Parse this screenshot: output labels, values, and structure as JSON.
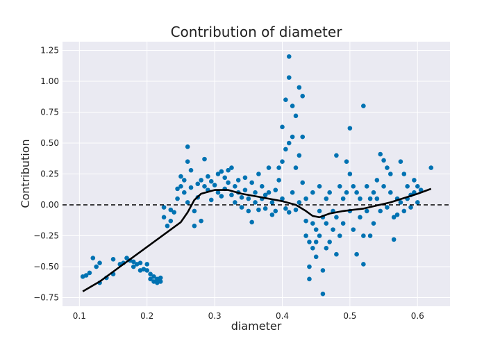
{
  "chart_data": {
    "type": "scatter",
    "title": "Contribution of diameter",
    "xlabel": "diameter",
    "ylabel": "Contribution",
    "xlim": [
      0.075,
      0.648
    ],
    "ylim": [
      -0.82,
      1.32
    ],
    "grid": true,
    "legend": "none",
    "x_ticks": [
      0.1,
      0.2,
      0.3,
      0.4,
      0.5,
      0.6
    ],
    "x_tick_labels": [
      "0.1",
      "0.2",
      "0.3",
      "0.4",
      "0.5",
      "0.6"
    ],
    "y_ticks": [
      -0.75,
      -0.5,
      -0.25,
      0.0,
      0.25,
      0.5,
      0.75,
      1.0,
      1.25
    ],
    "y_tick_labels": [
      "−0.75",
      "−0.50",
      "−0.25",
      "0.00",
      "0.25",
      "0.50",
      "0.75",
      "1.00",
      "1.25"
    ],
    "reference_line": {
      "y": 0,
      "style": "dashed",
      "color": "#000000"
    },
    "colors": {
      "points": "#0072b2",
      "trend": "#000000",
      "background": "#eaeaf2",
      "grid": "#ffffff"
    },
    "points": [
      [
        0.105,
        -0.58
      ],
      [
        0.11,
        -0.57
      ],
      [
        0.115,
        -0.55
      ],
      [
        0.12,
        -0.43
      ],
      [
        0.125,
        -0.5
      ],
      [
        0.13,
        -0.47
      ],
      [
        0.13,
        -0.63
      ],
      [
        0.14,
        -0.59
      ],
      [
        0.15,
        -0.44
      ],
      [
        0.15,
        -0.56
      ],
      [
        0.16,
        -0.48
      ],
      [
        0.165,
        -0.47
      ],
      [
        0.17,
        -0.43
      ],
      [
        0.175,
        -0.45
      ],
      [
        0.18,
        -0.46
      ],
      [
        0.18,
        -0.5
      ],
      [
        0.185,
        -0.48
      ],
      [
        0.19,
        -0.47
      ],
      [
        0.19,
        -0.53
      ],
      [
        0.195,
        -0.52
      ],
      [
        0.2,
        -0.48
      ],
      [
        0.2,
        -0.53
      ],
      [
        0.205,
        -0.56
      ],
      [
        0.205,
        -0.6
      ],
      [
        0.21,
        -0.58
      ],
      [
        0.21,
        -0.62
      ],
      [
        0.215,
        -0.6
      ],
      [
        0.215,
        -0.63
      ],
      [
        0.22,
        -0.59
      ],
      [
        0.22,
        -0.62
      ],
      [
        0.225,
        -0.02
      ],
      [
        0.225,
        -0.1
      ],
      [
        0.23,
        -0.17
      ],
      [
        0.235,
        -0.04
      ],
      [
        0.235,
        -0.13
      ],
      [
        0.24,
        -0.06
      ],
      [
        0.245,
        0.13
      ],
      [
        0.245,
        0.05
      ],
      [
        0.25,
        0.23
      ],
      [
        0.25,
        0.15
      ],
      [
        0.255,
        0.2
      ],
      [
        0.255,
        0.1
      ],
      [
        0.26,
        0.47
      ],
      [
        0.26,
        0.35
      ],
      [
        0.26,
        0.02
      ],
      [
        0.265,
        0.28
      ],
      [
        0.265,
        0.14
      ],
      [
        0.27,
        -0.05
      ],
      [
        0.27,
        -0.17
      ],
      [
        0.275,
        0.06
      ],
      [
        0.275,
        0.17
      ],
      [
        0.28,
        -0.13
      ],
      [
        0.28,
        0.2
      ],
      [
        0.285,
        0.37
      ],
      [
        0.285,
        0.15
      ],
      [
        0.29,
        0.12
      ],
      [
        0.29,
        0.23
      ],
      [
        0.295,
        0.04
      ],
      [
        0.295,
        0.19
      ],
      [
        0.3,
        0.16
      ],
      [
        0.305,
        0.25
      ],
      [
        0.305,
        0.1
      ],
      [
        0.31,
        0.27
      ],
      [
        0.31,
        0.07
      ],
      [
        0.315,
        0.22
      ],
      [
        0.315,
        0.13
      ],
      [
        0.32,
        0.28
      ],
      [
        0.32,
        0.18
      ],
      [
        0.325,
        0.3
      ],
      [
        0.325,
        0.08
      ],
      [
        0.33,
        0.15
      ],
      [
        0.33,
        0.02
      ],
      [
        0.335,
        0.2
      ],
      [
        0.335,
        0.1
      ],
      [
        0.34,
        0.06
      ],
      [
        0.34,
        -0.02
      ],
      [
        0.345,
        0.22
      ],
      [
        0.345,
        0.12
      ],
      [
        0.35,
        0.05
      ],
      [
        0.35,
        -0.05
      ],
      [
        0.355,
        0.18
      ],
      [
        0.355,
        -0.14
      ],
      [
        0.36,
        0.1
      ],
      [
        0.36,
        0.02
      ],
      [
        0.365,
        0.25
      ],
      [
        0.365,
        -0.04
      ],
      [
        0.37,
        0.15
      ],
      [
        0.37,
        0.05
      ],
      [
        0.375,
        -0.03
      ],
      [
        0.375,
        0.08
      ],
      [
        0.38,
        0.3
      ],
      [
        0.38,
        0.1
      ],
      [
        0.385,
        -0.08
      ],
      [
        0.385,
        0.02
      ],
      [
        0.39,
        0.12
      ],
      [
        0.39,
        -0.05
      ],
      [
        0.395,
        0.3
      ],
      [
        0.395,
        0.2
      ],
      [
        0.4,
        0.63
      ],
      [
        0.4,
        0.35
      ],
      [
        0.4,
        0.05
      ],
      [
        0.405,
        0.85
      ],
      [
        0.405,
        0.45
      ],
      [
        0.405,
        -0.03
      ],
      [
        0.41,
        1.2
      ],
      [
        0.41,
        1.03
      ],
      [
        0.41,
        0.5
      ],
      [
        0.41,
        -0.06
      ],
      [
        0.415,
        0.8
      ],
      [
        0.415,
        0.55
      ],
      [
        0.415,
        0.1
      ],
      [
        0.42,
        0.72
      ],
      [
        0.42,
        0.3
      ],
      [
        0.42,
        -0.04
      ],
      [
        0.425,
        0.95
      ],
      [
        0.425,
        0.4
      ],
      [
        0.425,
        0.02
      ],
      [
        0.43,
        0.88
      ],
      [
        0.43,
        0.55
      ],
      [
        0.43,
        0.18
      ],
      [
        0.435,
        -0.13
      ],
      [
        0.435,
        -0.25
      ],
      [
        0.435,
        0.05
      ],
      [
        0.44,
        -0.3
      ],
      [
        0.44,
        -0.5
      ],
      [
        0.44,
        -0.6
      ],
      [
        0.445,
        -0.15
      ],
      [
        0.445,
        -0.35
      ],
      [
        0.445,
        0.1
      ],
      [
        0.45,
        -0.2
      ],
      [
        0.45,
        -0.3
      ],
      [
        0.45,
        -0.42
      ],
      [
        0.455,
        -0.05
      ],
      [
        0.455,
        -0.25
      ],
      [
        0.455,
        0.15
      ],
      [
        0.46,
        -0.72
      ],
      [
        0.46,
        -0.53
      ],
      [
        0.46,
        -0.1
      ],
      [
        0.465,
        -0.35
      ],
      [
        0.465,
        -0.15
      ],
      [
        0.465,
        0.05
      ],
      [
        0.47,
        -0.3
      ],
      [
        0.47,
        0.1
      ],
      [
        0.475,
        -0.2
      ],
      [
        0.475,
        -0.05
      ],
      [
        0.48,
        0.4
      ],
      [
        0.48,
        -0.1
      ],
      [
        0.48,
        -0.4
      ],
      [
        0.485,
        0.15
      ],
      [
        0.485,
        -0.25
      ],
      [
        0.49,
        0.05
      ],
      [
        0.49,
        -0.15
      ],
      [
        0.495,
        0.35
      ],
      [
        0.495,
        0.1
      ],
      [
        0.5,
        0.62
      ],
      [
        0.5,
        0.25
      ],
      [
        0.5,
        -0.05
      ],
      [
        0.505,
        0.15
      ],
      [
        0.505,
        -0.2
      ],
      [
        0.51,
        0.1
      ],
      [
        0.51,
        -0.4
      ],
      [
        0.515,
        -0.1
      ],
      [
        0.515,
        0.05
      ],
      [
        0.52,
        0.8
      ],
      [
        0.52,
        -0.48
      ],
      [
        0.52,
        -0.25
      ],
      [
        0.525,
        0.15
      ],
      [
        0.525,
        -0.05
      ],
      [
        0.53,
        0.05
      ],
      [
        0.53,
        -0.25
      ],
      [
        0.535,
        0.1
      ],
      [
        0.535,
        -0.15
      ],
      [
        0.54,
        0.2
      ],
      [
        0.54,
        0.05
      ],
      [
        0.545,
        0.41
      ],
      [
        0.545,
        -0.05
      ],
      [
        0.55,
        0.36
      ],
      [
        0.55,
        0.15
      ],
      [
        0.555,
        -0.02
      ],
      [
        0.555,
        0.3
      ],
      [
        0.56,
        0.25
      ],
      [
        0.56,
        0.1
      ],
      [
        0.565,
        -0.28
      ],
      [
        0.565,
        -0.1
      ],
      [
        0.57,
        0.05
      ],
      [
        0.57,
        -0.08
      ],
      [
        0.575,
        0.35
      ],
      [
        0.575,
        0.02
      ],
      [
        0.58,
        0.25
      ],
      [
        0.58,
        -0.05
      ],
      [
        0.585,
        0.15
      ],
      [
        0.585,
        0.05
      ],
      [
        0.59,
        0.08
      ],
      [
        0.59,
        -0.02
      ],
      [
        0.595,
        0.2
      ],
      [
        0.595,
        0.1
      ],
      [
        0.6,
        0.15
      ],
      [
        0.6,
        0.02
      ],
      [
        0.605,
        0.12
      ],
      [
        0.62,
        0.3
      ]
    ],
    "trend": [
      [
        0.105,
        -0.7
      ],
      [
        0.13,
        -0.62
      ],
      [
        0.16,
        -0.5
      ],
      [
        0.19,
        -0.38
      ],
      [
        0.22,
        -0.26
      ],
      [
        0.25,
        -0.14
      ],
      [
        0.26,
        -0.06
      ],
      [
        0.27,
        0.04
      ],
      [
        0.28,
        0.09
      ],
      [
        0.3,
        0.12
      ],
      [
        0.32,
        0.12
      ],
      [
        0.34,
        0.09
      ],
      [
        0.36,
        0.07
      ],
      [
        0.38,
        0.05
      ],
      [
        0.4,
        0.03
      ],
      [
        0.42,
        0.0
      ],
      [
        0.435,
        -0.05
      ],
      [
        0.445,
        -0.09
      ],
      [
        0.455,
        -0.1
      ],
      [
        0.47,
        -0.07
      ],
      [
        0.49,
        -0.05
      ],
      [
        0.52,
        -0.03
      ],
      [
        0.56,
        0.02
      ],
      [
        0.6,
        0.09
      ],
      [
        0.62,
        0.13
      ]
    ]
  }
}
